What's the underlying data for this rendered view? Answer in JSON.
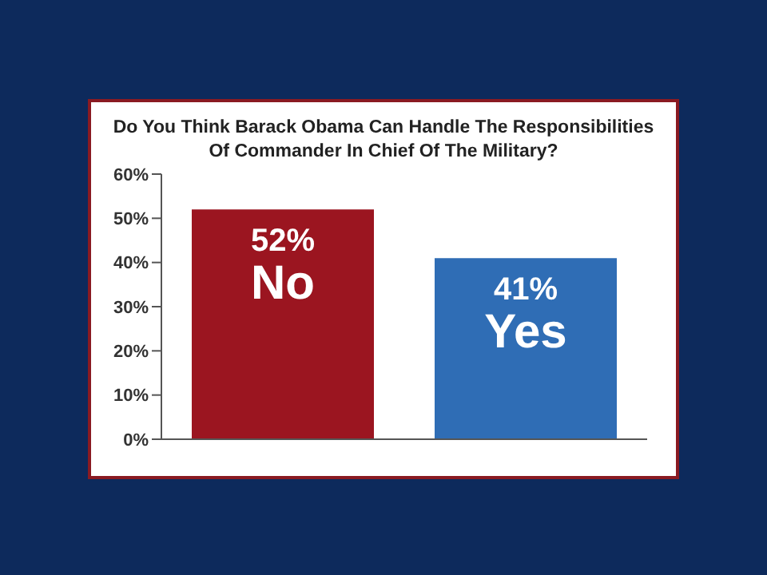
{
  "chart_data": {
    "type": "bar",
    "title": "Do You Think Barack Obama Can Handle The Responsibilities Of Commander In Chief Of The Military?",
    "categories": [
      "No",
      "Yes"
    ],
    "values": [
      52,
      41
    ],
    "colors": [
      "#9b1520",
      "#2f6db5"
    ],
    "value_labels": [
      "52%",
      "41%"
    ],
    "ylim": [
      0,
      60
    ],
    "yticks": [
      {
        "value": 0,
        "label": "0%"
      },
      {
        "value": 10,
        "label": "10%"
      },
      {
        "value": 20,
        "label": "20%"
      },
      {
        "value": 30,
        "label": "30%"
      },
      {
        "value": 40,
        "label": "40%"
      },
      {
        "value": 50,
        "label": "50%"
      },
      {
        "value": 60,
        "label": "60%"
      }
    ],
    "grid": false,
    "legend": false,
    "tick_labels": "y"
  }
}
